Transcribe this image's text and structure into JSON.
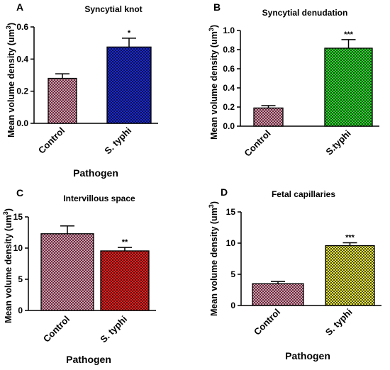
{
  "colors": {
    "control_fill": "#c9a0ad",
    "control_dot": "#6b2a3e",
    "blue_fill": "#1f2cc7",
    "blue_dot": "#0a0f55",
    "green_fill": "#2fd62f",
    "green_dot": "#0d550d",
    "red_fill": "#e32222",
    "red_dot": "#5e0b0b",
    "yellow_fill": "#e8e84a",
    "yellow_dot": "#4a4a08"
  },
  "chart_data": [
    {
      "type": "bar",
      "panel_letter": "A",
      "title": "Syncytial knot",
      "xlabel": "Pathogen",
      "ylabel": "Mean volume density (um",
      "ylabel_sup": "3",
      "ylabel_close": ")",
      "categories": [
        "Control",
        "S. typhi"
      ],
      "values": [
        0.28,
        0.475
      ],
      "errors": [
        0.028,
        0.055
      ],
      "significance": [
        "",
        "*"
      ],
      "ylim": [
        0,
        0.6
      ],
      "yticks": [
        0.0,
        0.2,
        0.4,
        0.6
      ],
      "ytick_labels": [
        "0.0",
        "0.2",
        "0.4",
        "0.6"
      ],
      "bar_fills": [
        "control",
        "blue"
      ]
    },
    {
      "type": "bar",
      "panel_letter": "B",
      "title": "Syncytial denudation",
      "xlabel": "",
      "ylabel": "Mean volume density (um",
      "ylabel_sup": "3",
      "ylabel_close": ")",
      "categories": [
        "Control",
        "S.typhi"
      ],
      "values": [
        0.19,
        0.815
      ],
      "errors": [
        0.025,
        0.09
      ],
      "significance": [
        "",
        "***"
      ],
      "ylim": [
        0,
        1.0
      ],
      "yticks": [
        0.0,
        0.2,
        0.4,
        0.6,
        0.8,
        1.0
      ],
      "ytick_labels": [
        "0.0",
        "0.2",
        "0.4",
        "0.6",
        "0.8",
        "1.0"
      ],
      "bar_fills": [
        "control",
        "green"
      ]
    },
    {
      "type": "bar",
      "panel_letter": "C",
      "title": "Intervillous space",
      "xlabel": "Pathogen",
      "ylabel": "Mean volume density (um",
      "ylabel_sup": "3",
      "ylabel_close": ")",
      "categories": [
        "Control",
        "S. typhi"
      ],
      "values": [
        12.3,
        9.55
      ],
      "errors": [
        1.25,
        0.55
      ],
      "significance": [
        "",
        "**"
      ],
      "ylim": [
        0,
        15
      ],
      "yticks": [
        0,
        5,
        10,
        15
      ],
      "ytick_labels": [
        "0",
        "5",
        "10",
        "15"
      ],
      "bar_fills": [
        "control",
        "red"
      ]
    },
    {
      "type": "bar",
      "panel_letter": "D",
      "title": "Fetal capillaries",
      "xlabel": "Pathogen",
      "ylabel": "Mean volume density (um",
      "ylabel_sup": "3",
      "ylabel_close": ")",
      "categories": [
        "Control",
        "S. typhi"
      ],
      "values": [
        3.5,
        9.6
      ],
      "errors": [
        0.35,
        0.45
      ],
      "significance": [
        "",
        "***"
      ],
      "ylim": [
        0,
        15
      ],
      "yticks": [
        0,
        5,
        10,
        15
      ],
      "ytick_labels": [
        "0",
        "5",
        "10",
        "15"
      ],
      "bar_fills": [
        "control",
        "yellow"
      ]
    }
  ]
}
